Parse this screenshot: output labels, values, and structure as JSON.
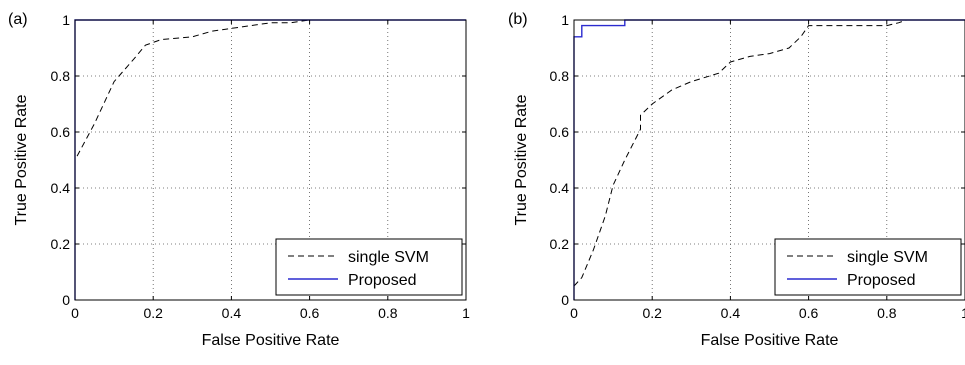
{
  "chart_data": [
    {
      "type": "line",
      "panel_label": "(a)",
      "xlabel": "False Positive Rate",
      "ylabel": "True Positive Rate",
      "xlim": [
        0,
        1
      ],
      "ylim": [
        0,
        1
      ],
      "x_ticks": [
        "0",
        "0.2",
        "0.4",
        "0.6",
        "0.8",
        "1"
      ],
      "y_ticks": [
        "0",
        "0.2",
        "0.4",
        "0.6",
        "0.8",
        "1"
      ],
      "grid": true,
      "legend_position": "bottom-right",
      "series": [
        {
          "name": "single SVM",
          "style": "dashed",
          "color": "#000000",
          "x": [
            0,
            0,
            0.05,
            0.1,
            0.15,
            0.18,
            0.22,
            0.3,
            0.35,
            0.4,
            0.45,
            0.5,
            0.55,
            0.6,
            1.0
          ],
          "y": [
            0.48,
            0.5,
            0.63,
            0.78,
            0.86,
            0.91,
            0.93,
            0.94,
            0.96,
            0.97,
            0.98,
            0.99,
            0.99,
            1.0,
            1.0
          ]
        },
        {
          "name": "Proposed",
          "style": "solid",
          "color": "#2b2bcf",
          "x": [
            0,
            0,
            1
          ],
          "y": [
            0,
            1,
            1
          ]
        }
      ]
    },
    {
      "type": "line",
      "panel_label": "(b)",
      "xlabel": "False Positive Rate",
      "ylabel": "True Positive Rate",
      "xlim": [
        0,
        1
      ],
      "ylim": [
        0,
        1
      ],
      "x_ticks": [
        "0",
        "0.2",
        "0.4",
        "0.6",
        "0.8",
        "1"
      ],
      "y_ticks": [
        "0",
        "0.2",
        "0.4",
        "0.6",
        "0.8",
        "1"
      ],
      "grid": true,
      "legend_position": "bottom-right",
      "series": [
        {
          "name": "single SVM",
          "style": "dashed",
          "color": "#000000",
          "x": [
            0,
            0.02,
            0.05,
            0.08,
            0.1,
            0.13,
            0.17,
            0.17,
            0.2,
            0.25,
            0.3,
            0.37,
            0.4,
            0.45,
            0.5,
            0.55,
            0.58,
            0.6,
            0.7,
            0.8,
            0.83,
            0.85,
            1.0
          ],
          "y": [
            0.05,
            0.08,
            0.18,
            0.3,
            0.41,
            0.5,
            0.61,
            0.66,
            0.7,
            0.75,
            0.78,
            0.81,
            0.85,
            0.87,
            0.88,
            0.9,
            0.94,
            0.98,
            0.98,
            0.98,
            0.99,
            1.0,
            1.0
          ]
        },
        {
          "name": "Proposed",
          "style": "solid",
          "color": "#2b2bcf",
          "x": [
            0,
            0,
            0.02,
            0.02,
            0.13,
            0.13,
            0.83,
            0.83,
            1.0
          ],
          "y": [
            0,
            0.94,
            0.94,
            0.98,
            0.98,
            1.0,
            1.0,
            1.0,
            1.0
          ]
        }
      ]
    }
  ]
}
